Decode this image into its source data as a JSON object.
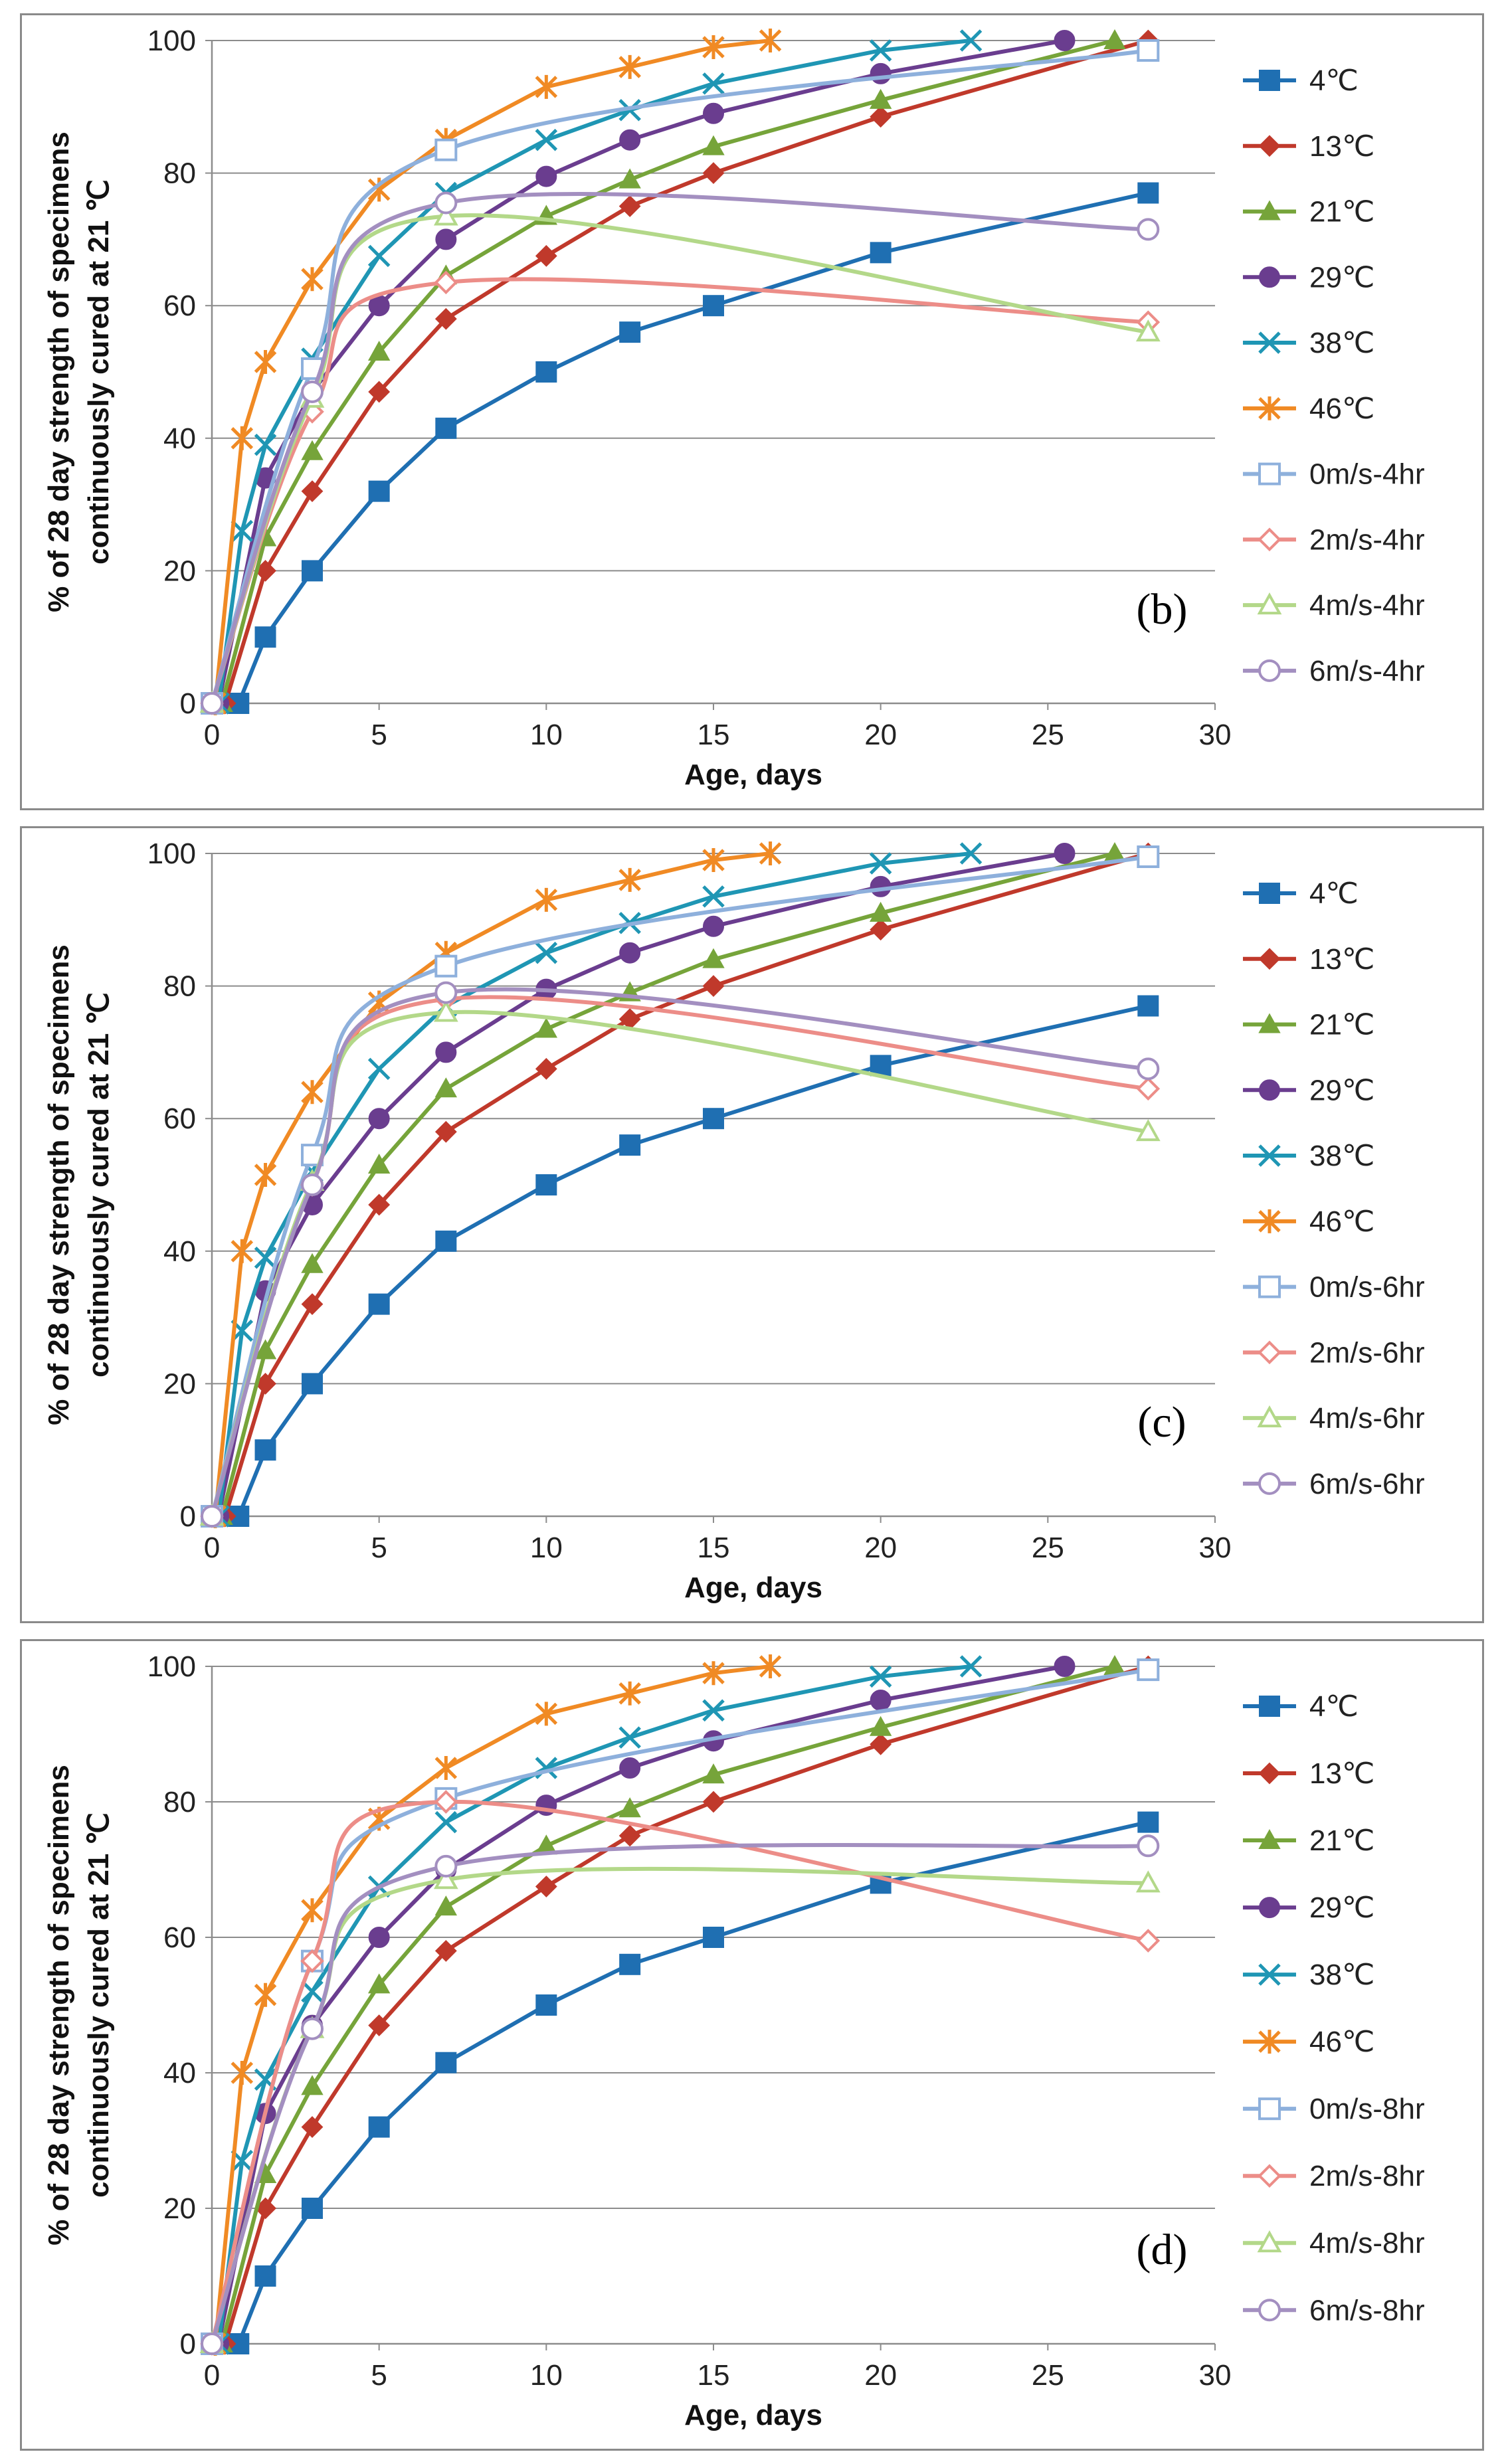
{
  "chart_data": [
    {
      "type": "line",
      "panel_label": "(b)",
      "xlabel": "Age, days",
      "ylabel_line1": "% of 28 day strength of specimens",
      "ylabel_line2": "continuously cured at 21 ℃",
      "xlim": [
        0,
        30
      ],
      "ylim": [
        0,
        100
      ],
      "xticks": [
        "0",
        "5",
        "10",
        "15",
        "20",
        "25",
        "30"
      ],
      "yticks": [
        "0",
        "20",
        "40",
        "60",
        "80",
        "100"
      ],
      "grid": "horizontal",
      "legend_position": "right",
      "series": [
        {
          "name": "4℃",
          "color": "#1f6fb2",
          "marker": "square",
          "smooth": false,
          "x": [
            0.8,
            1.6,
            3,
            5,
            7,
            10,
            12.5,
            15,
            20,
            28
          ],
          "y": [
            0,
            10,
            20,
            32,
            41.5,
            50,
            56,
            60,
            68,
            77
          ]
        },
        {
          "name": "13℃",
          "color": "#c0392b",
          "marker": "diamond",
          "smooth": false,
          "x": [
            0.4,
            1.6,
            3,
            5,
            7,
            10,
            12.5,
            15,
            20,
            28
          ],
          "y": [
            0,
            20,
            32,
            47,
            58,
            67.5,
            75,
            80,
            88.5,
            100
          ]
        },
        {
          "name": "21℃",
          "color": "#76a43a",
          "marker": "triangle",
          "smooth": false,
          "x": [
            0.3,
            1.6,
            3,
            5,
            7,
            10,
            12.5,
            15,
            20,
            27
          ],
          "y": [
            0,
            25,
            38,
            53,
            64.5,
            73.5,
            79,
            84,
            91,
            100
          ]
        },
        {
          "name": "29℃",
          "color": "#6a3d8f",
          "marker": "circle",
          "smooth": false,
          "x": [
            0.2,
            1.6,
            3,
            5,
            7,
            10,
            12.5,
            15,
            20,
            25.5
          ],
          "y": [
            0,
            34,
            47,
            60,
            70,
            79.5,
            85,
            89,
            95,
            100
          ]
        },
        {
          "name": "38℃",
          "color": "#1f96b4",
          "marker": "x",
          "smooth": false,
          "x": [
            0.2,
            0.9,
            1.6,
            3,
            5,
            7,
            10,
            12.5,
            15,
            20,
            22.7
          ],
          "y": [
            0,
            26,
            39,
            52,
            67.5,
            77,
            85,
            89.5,
            93.5,
            98.5,
            100
          ]
        },
        {
          "name": "46℃",
          "color": "#f08a24",
          "marker": "asterisk",
          "smooth": false,
          "x": [
            0.1,
            0.9,
            1.6,
            3,
            5,
            7,
            10,
            12.5,
            15,
            16.7
          ],
          "y": [
            0,
            40,
            51.5,
            64,
            77.5,
            85,
            93,
            96,
            99,
            100
          ]
        },
        {
          "name": "0m/s-4hr",
          "color": "#8eb0dc",
          "marker": "open-square",
          "smooth": true,
          "x": [
            0,
            3,
            7,
            28
          ],
          "y": [
            0,
            50.5,
            83.5,
            98.5
          ]
        },
        {
          "name": "2m/s-4hr",
          "color": "#ec8d88",
          "marker": "open-diamond",
          "smooth": true,
          "x": [
            0,
            3,
            7,
            28
          ],
          "y": [
            0,
            44,
            63.5,
            57.5
          ]
        },
        {
          "name": "4m/s-4hr",
          "color": "#b3d889",
          "marker": "open-triangle",
          "smooth": true,
          "x": [
            0,
            3,
            7,
            28
          ],
          "y": [
            0,
            46,
            73.5,
            56
          ]
        },
        {
          "name": "6m/s-4hr",
          "color": "#a38fc0",
          "marker": "open-circle",
          "smooth": true,
          "x": [
            0,
            3,
            7,
            28
          ],
          "y": [
            0,
            47,
            75.5,
            71.5
          ]
        }
      ]
    },
    {
      "type": "line",
      "panel_label": "(c)",
      "xlabel": "Age, days",
      "ylabel_line1": "% of 28 day strength of specimens",
      "ylabel_line2": "continuously cured at 21 ℃",
      "xlim": [
        0,
        30
      ],
      "ylim": [
        0,
        100
      ],
      "xticks": [
        "0",
        "5",
        "10",
        "15",
        "20",
        "25",
        "30"
      ],
      "yticks": [
        "0",
        "20",
        "40",
        "60",
        "80",
        "100"
      ],
      "grid": "horizontal",
      "legend_position": "right",
      "series": [
        {
          "name": "4℃",
          "color": "#1f6fb2",
          "marker": "square",
          "smooth": false,
          "x": [
            0.8,
            1.6,
            3,
            5,
            7,
            10,
            12.5,
            15,
            20,
            28
          ],
          "y": [
            0,
            10,
            20,
            32,
            41.5,
            50,
            56,
            60,
            68,
            77
          ]
        },
        {
          "name": "13℃",
          "color": "#c0392b",
          "marker": "diamond",
          "smooth": false,
          "x": [
            0.4,
            1.6,
            3,
            5,
            7,
            10,
            12.5,
            15,
            20,
            28
          ],
          "y": [
            0,
            20,
            32,
            47,
            58,
            67.5,
            75,
            80,
            88.5,
            100
          ]
        },
        {
          "name": "21℃",
          "color": "#76a43a",
          "marker": "triangle",
          "smooth": false,
          "x": [
            0.3,
            1.6,
            3,
            5,
            7,
            10,
            12.5,
            15,
            20,
            27
          ],
          "y": [
            0,
            25,
            38,
            53,
            64.5,
            73.5,
            79,
            84,
            91,
            100
          ]
        },
        {
          "name": "29℃",
          "color": "#6a3d8f",
          "marker": "circle",
          "smooth": false,
          "x": [
            0.2,
            1.6,
            3,
            5,
            7,
            10,
            12.5,
            15,
            20,
            25.5
          ],
          "y": [
            0,
            34,
            47,
            60,
            70,
            79.5,
            85,
            89,
            95,
            100
          ]
        },
        {
          "name": "38℃",
          "color": "#1f96b4",
          "marker": "x",
          "smooth": false,
          "x": [
            0.2,
            0.9,
            1.6,
            3,
            5,
            7,
            10,
            12.5,
            15,
            20,
            22.7
          ],
          "y": [
            0,
            28,
            39,
            52,
            67.5,
            77,
            85,
            89.5,
            93.5,
            98.5,
            100
          ]
        },
        {
          "name": "46℃",
          "color": "#f08a24",
          "marker": "asterisk",
          "smooth": false,
          "x": [
            0.1,
            0.9,
            1.6,
            3,
            5,
            7,
            10,
            12.5,
            15,
            16.7
          ],
          "y": [
            0,
            40,
            51.5,
            64,
            77.5,
            85,
            93,
            96,
            99,
            100
          ]
        },
        {
          "name": "0m/s-6hr",
          "color": "#8eb0dc",
          "marker": "open-square",
          "smooth": true,
          "x": [
            0,
            3,
            7,
            28
          ],
          "y": [
            0,
            54.5,
            83,
            99.5
          ]
        },
        {
          "name": "2m/s-6hr",
          "color": "#ec8d88",
          "marker": "open-diamond",
          "smooth": true,
          "x": [
            0,
            3,
            7,
            28
          ],
          "y": [
            0,
            50,
            78,
            64.5
          ]
        },
        {
          "name": "4m/s-6hr",
          "color": "#b3d889",
          "marker": "open-triangle",
          "smooth": true,
          "x": [
            0,
            3,
            7,
            28
          ],
          "y": [
            0,
            50.5,
            76,
            58
          ]
        },
        {
          "name": "6m/s-6hr",
          "color": "#a38fc0",
          "marker": "open-circle",
          "smooth": true,
          "x": [
            0,
            3,
            7,
            28
          ],
          "y": [
            0,
            50,
            79,
            67.5
          ]
        }
      ]
    },
    {
      "type": "line",
      "panel_label": "(d)",
      "xlabel": "Age, days",
      "ylabel_line1": "% of 28 day strength of specimens",
      "ylabel_line2": "continuously cured at 21 ℃",
      "xlim": [
        0,
        30
      ],
      "ylim": [
        0,
        100
      ],
      "xticks": [
        "0",
        "5",
        "10",
        "15",
        "20",
        "25",
        "30"
      ],
      "yticks": [
        "0",
        "20",
        "40",
        "60",
        "80",
        "100"
      ],
      "grid": "horizontal",
      "legend_position": "right",
      "series": [
        {
          "name": "4℃",
          "color": "#1f6fb2",
          "marker": "square",
          "smooth": false,
          "x": [
            0.8,
            1.6,
            3,
            5,
            7,
            10,
            12.5,
            15,
            20,
            28
          ],
          "y": [
            0,
            10,
            20,
            32,
            41.5,
            50,
            56,
            60,
            68,
            77
          ]
        },
        {
          "name": "13℃",
          "color": "#c0392b",
          "marker": "diamond",
          "smooth": false,
          "x": [
            0.4,
            1.6,
            3,
            5,
            7,
            10,
            12.5,
            15,
            20,
            28
          ],
          "y": [
            0,
            20,
            32,
            47,
            58,
            67.5,
            75,
            80,
            88.5,
            100
          ]
        },
        {
          "name": "21℃",
          "color": "#76a43a",
          "marker": "triangle",
          "smooth": false,
          "x": [
            0.3,
            1.6,
            3,
            5,
            7,
            10,
            12.5,
            15,
            20,
            27
          ],
          "y": [
            0,
            25,
            38,
            53,
            64.5,
            73.5,
            79,
            84,
            91,
            100
          ]
        },
        {
          "name": "29℃",
          "color": "#6a3d8f",
          "marker": "circle",
          "smooth": false,
          "x": [
            0.2,
            1.6,
            3,
            5,
            7,
            10,
            12.5,
            15,
            20,
            25.5
          ],
          "y": [
            0,
            34,
            47,
            60,
            70,
            79.5,
            85,
            89,
            95,
            100
          ]
        },
        {
          "name": "38℃",
          "color": "#1f96b4",
          "marker": "x",
          "smooth": false,
          "x": [
            0.2,
            0.9,
            1.6,
            3,
            5,
            7,
            10,
            12.5,
            15,
            20,
            22.7
          ],
          "y": [
            0,
            27,
            39,
            52,
            67.5,
            77,
            85,
            89.5,
            93.5,
            98.5,
            100
          ]
        },
        {
          "name": "46℃",
          "color": "#f08a24",
          "marker": "asterisk",
          "smooth": false,
          "x": [
            0.1,
            0.9,
            1.6,
            3,
            5,
            7,
            10,
            12.5,
            15,
            16.7
          ],
          "y": [
            0,
            40,
            51.5,
            64,
            77.5,
            85,
            93,
            96,
            99,
            100
          ]
        },
        {
          "name": "0m/s-8hr",
          "color": "#8eb0dc",
          "marker": "open-square",
          "smooth": true,
          "x": [
            0,
            3,
            7,
            28
          ],
          "y": [
            0,
            56.5,
            80.5,
            99.5
          ]
        },
        {
          "name": "2m/s-8hr",
          "color": "#ec8d88",
          "marker": "open-diamond",
          "smooth": true,
          "x": [
            0,
            3,
            7,
            28
          ],
          "y": [
            0,
            56.5,
            80,
            59.5
          ]
        },
        {
          "name": "4m/s-8hr",
          "color": "#b3d889",
          "marker": "open-triangle",
          "smooth": true,
          "x": [
            0,
            3,
            7,
            28
          ],
          "y": [
            0,
            46.5,
            68.5,
            68
          ]
        },
        {
          "name": "6m/s-8hr",
          "color": "#a38fc0",
          "marker": "open-circle",
          "smooth": true,
          "x": [
            0,
            3,
            7,
            28
          ],
          "y": [
            0,
            46.5,
            70.5,
            73.5
          ]
        }
      ]
    }
  ]
}
